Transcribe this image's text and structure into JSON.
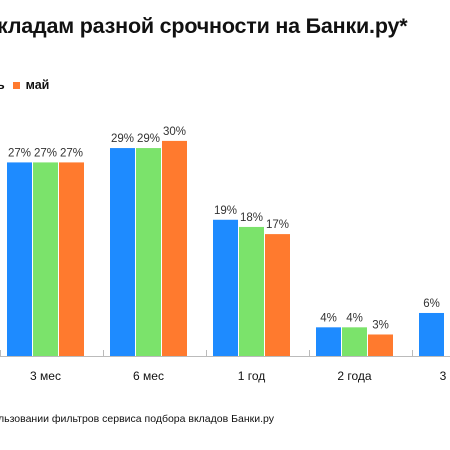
{
  "chart_data": {
    "type": "bar",
    "title": "кладам разной срочности на Банки.ру*",
    "categories": [
      "3 мес",
      "6 мес",
      "1 год",
      "2 года",
      "3"
    ],
    "series": [
      {
        "name": "ль",
        "color": "#1E8BFF",
        "values": [
          27,
          29,
          19,
          4,
          6
        ]
      },
      {
        "name": "",
        "color": "#7BE36B",
        "values": [
          27,
          29,
          18,
          4,
          null
        ]
      },
      {
        "name": "май",
        "color": "#FF7A2E",
        "values": [
          27,
          30,
          17,
          3,
          null
        ]
      }
    ],
    "data_labels": [
      [
        "27%",
        "29%",
        "19%",
        "4%",
        "6%"
      ],
      [
        "27%",
        "29%",
        "18%",
        "4%",
        ""
      ],
      [
        "27%",
        "30%",
        "17%",
        "3%",
        ""
      ]
    ],
    "ylim": [
      0,
      30
    ],
    "xlabel": "",
    "ylabel": "",
    "grid": false,
    "legend_position": "top-left",
    "footnote": "льзовании фильтров сервиса подбора вкладов Банки.ру"
  }
}
